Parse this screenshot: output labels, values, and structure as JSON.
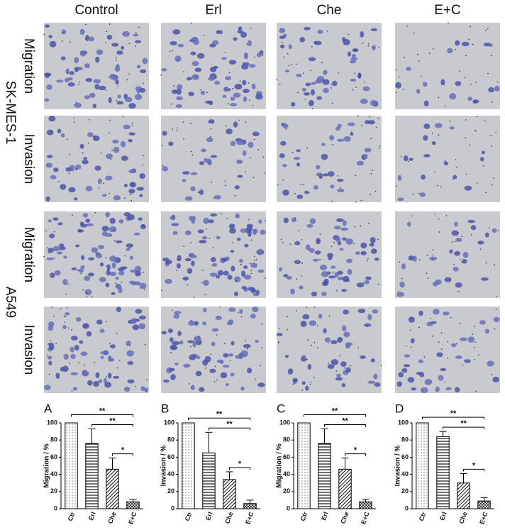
{
  "figure": {
    "columns": [
      "Control",
      "Erl",
      "Che",
      "E+C"
    ],
    "groups": [
      {
        "name": "SK-MES-1",
        "rows": [
          "Migration",
          "Invasion"
        ]
      },
      {
        "name": "A549",
        "rows": [
          "Migration",
          "Invasion"
        ]
      }
    ]
  },
  "chart_data": [
    {
      "type": "bar",
      "panel": "A",
      "y_label": "Migration / %",
      "categories": [
        "Ctr",
        "Erl",
        "Che",
        "E+C"
      ],
      "values": [
        100,
        76,
        46,
        8
      ],
      "errors": [
        0,
        17,
        13,
        3
      ],
      "patterns": [
        "dots",
        "horizontal",
        "diagonal",
        "cross"
      ],
      "ylim": [
        0,
        100
      ],
      "yticks": [
        0,
        20,
        40,
        60,
        80,
        100
      ],
      "significance": [
        {
          "from": "Ctr",
          "to": "E+C",
          "label": "**"
        },
        {
          "from": "Erl",
          "to": "E+C",
          "label": "**"
        },
        {
          "from": "Che",
          "to": "E+C",
          "label": "*"
        }
      ]
    },
    {
      "type": "bar",
      "panel": "B",
      "y_label": "Invasion / %",
      "categories": [
        "Ctr",
        "Erl",
        "Che",
        "E+C"
      ],
      "values": [
        100,
        65,
        34,
        6
      ],
      "errors": [
        0,
        24,
        9,
        4
      ],
      "patterns": [
        "dots",
        "horizontal",
        "diagonal",
        "cross"
      ],
      "ylim": [
        0,
        100
      ],
      "yticks": [
        0,
        20,
        40,
        60,
        80,
        100
      ],
      "significance": [
        {
          "from": "Ctr",
          "to": "E+C",
          "label": "**"
        },
        {
          "from": "Erl",
          "to": "E+C",
          "label": "**"
        },
        {
          "from": "Che",
          "to": "E+C",
          "label": "*"
        }
      ]
    },
    {
      "type": "bar",
      "panel": "C",
      "y_label": "Migration / %",
      "categories": [
        "Ctr",
        "Erl",
        "Che",
        "E+C"
      ],
      "values": [
        100,
        76,
        46,
        8
      ],
      "errors": [
        0,
        17,
        13,
        3
      ],
      "patterns": [
        "dots",
        "horizontal",
        "diagonal",
        "cross"
      ],
      "ylim": [
        0,
        100
      ],
      "yticks": [
        0,
        20,
        40,
        60,
        80,
        100
      ],
      "significance": [
        {
          "from": "Ctr",
          "to": "E+C",
          "label": "**"
        },
        {
          "from": "Erl",
          "to": "E+C",
          "label": "**"
        },
        {
          "from": "Che",
          "to": "E+C",
          "label": "*"
        }
      ]
    },
    {
      "type": "bar",
      "panel": "D",
      "y_label": "Invasion / %",
      "categories": [
        "Ctr",
        "Erl",
        "Che",
        "E+C"
      ],
      "values": [
        100,
        84,
        30,
        9
      ],
      "errors": [
        0,
        6,
        11,
        4
      ],
      "patterns": [
        "dots",
        "horizontal",
        "diagonal",
        "cross"
      ],
      "ylim": [
        0,
        100
      ],
      "yticks": [
        0,
        20,
        40,
        60,
        80,
        100
      ],
      "significance": [
        {
          "from": "Ctr",
          "to": "E+C",
          "label": "**"
        },
        {
          "from": "Erl",
          "to": "E+C",
          "label": "**"
        },
        {
          "from": "Che",
          "to": "E+C",
          "label": "*"
        }
      ]
    }
  ]
}
